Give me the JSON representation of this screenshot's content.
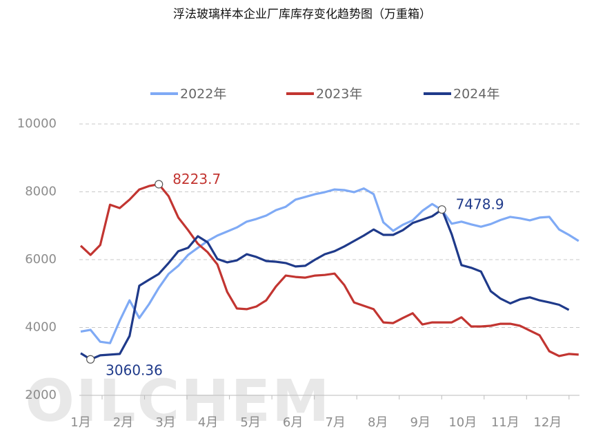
{
  "chart_data": {
    "type": "line",
    "title": "浮法玻璃样本企业厂库库存变化趋势图（万重箱）",
    "watermark": "OILCHEM",
    "xlim": [
      1,
      12.75
    ],
    "xticks": [
      {
        "value": 1,
        "label": "1月"
      },
      {
        "value": 2,
        "label": "2月"
      },
      {
        "value": 3,
        "label": "3月"
      },
      {
        "value": 4,
        "label": "4月"
      },
      {
        "value": 5,
        "label": "5月"
      },
      {
        "value": 6,
        "label": "6月"
      },
      {
        "value": 7,
        "label": "7月"
      },
      {
        "value": 8,
        "label": "8月"
      },
      {
        "value": 9,
        "label": "9月"
      },
      {
        "value": 10,
        "label": "10月"
      },
      {
        "value": 11,
        "label": "11月"
      },
      {
        "value": 12,
        "label": "12月"
      }
    ],
    "ylim": [
      2000,
      10000
    ],
    "yticks": [
      2000,
      4000,
      6000,
      8000,
      10000
    ],
    "grid": true,
    "legend": "top",
    "x": [
      1,
      1.23,
      1.46,
      1.69,
      1.92,
      2.15,
      2.38,
      2.61,
      2.84,
      3.07,
      3.3,
      3.53,
      3.76,
      3.99,
      4.22,
      4.45,
      4.68,
      4.91,
      5.14,
      5.37,
      5.6,
      5.83,
      6.06,
      6.29,
      6.52,
      6.75,
      6.98,
      7.21,
      7.44,
      7.67,
      7.9,
      8.13,
      8.36,
      8.59,
      8.82,
      9.05,
      9.28,
      9.51,
      9.74,
      9.97,
      10.2,
      10.43,
      10.66,
      10.89,
      11.12,
      11.35,
      11.58,
      11.81,
      12.04,
      12.27,
      12.5,
      12.73
    ],
    "series": [
      {
        "name": "2022年",
        "color": "#7faaf5",
        "values": [
          3880,
          3930,
          3580,
          3540,
          4200,
          4800,
          4280,
          4690,
          5170,
          5580,
          5820,
          6140,
          6350,
          6550,
          6710,
          6830,
          6950,
          7120,
          7200,
          7300,
          7460,
          7560,
          7770,
          7850,
          7930,
          7990,
          8070,
          8050,
          7990,
          8100,
          7930,
          7100,
          6850,
          7030,
          7160,
          7440,
          7640,
          7460,
          7060,
          7120,
          7040,
          6970,
          7050,
          7170,
          7260,
          7220,
          7160,
          7240,
          7260,
          6890,
          6730,
          6550
        ]
      },
      {
        "name": "2023年",
        "color": "#c23531",
        "values": [
          6410,
          6140,
          6430,
          7620,
          7520,
          7770,
          8070,
          8170,
          8223.7,
          7870,
          7240,
          6870,
          6470,
          6220,
          5860,
          5050,
          4560,
          4540,
          4620,
          4800,
          5210,
          5530,
          5490,
          5470,
          5530,
          5550,
          5590,
          5250,
          4740,
          4640,
          4540,
          4150,
          4130,
          4280,
          4420,
          4090,
          4150,
          4150,
          4150,
          4300,
          4030,
          4030,
          4050,
          4110,
          4110,
          4050,
          3910,
          3770,
          3300,
          3160,
          3220,
          3200
        ],
        "value_labels": [
          null,
          null,
          null,
          null,
          null,
          null,
          null,
          null,
          "8223.7",
          null,
          null,
          null,
          null,
          null,
          null,
          null,
          null,
          null,
          null,
          null,
          null,
          null,
          null,
          null,
          null,
          null,
          null,
          null,
          null,
          null,
          null,
          null,
          null,
          null,
          null,
          null,
          null,
          null,
          null,
          null,
          null,
          null,
          null,
          null,
          null,
          null,
          null,
          null,
          null,
          null,
          null,
          null
        ]
      },
      {
        "name": "2024年",
        "color": "#1f3a8a",
        "values": [
          3240,
          3060.36,
          3180,
          3200,
          3220,
          3750,
          5230,
          5410,
          5580,
          5900,
          6250,
          6350,
          6690,
          6510,
          6020,
          5920,
          5980,
          6160,
          6080,
          5960,
          5940,
          5900,
          5800,
          5820,
          6000,
          6160,
          6250,
          6390,
          6550,
          6710,
          6890,
          6730,
          6730,
          6870,
          7080,
          7180,
          7280,
          7478.9,
          6750,
          5840,
          5760,
          5650,
          5070,
          4850,
          4710,
          4830,
          4890,
          4800,
          4740,
          4670,
          4520,
          null
        ],
        "value_labels": [
          null,
          "3060.36",
          null,
          null,
          null,
          null,
          null,
          null,
          null,
          null,
          null,
          null,
          null,
          null,
          null,
          null,
          null,
          null,
          null,
          null,
          null,
          null,
          null,
          null,
          null,
          null,
          null,
          null,
          null,
          null,
          null,
          null,
          null,
          null,
          null,
          null,
          null,
          "7478.9",
          null,
          null,
          null,
          null,
          null,
          null,
          null,
          null,
          null,
          null,
          null,
          null,
          null,
          null
        ]
      }
    ]
  }
}
